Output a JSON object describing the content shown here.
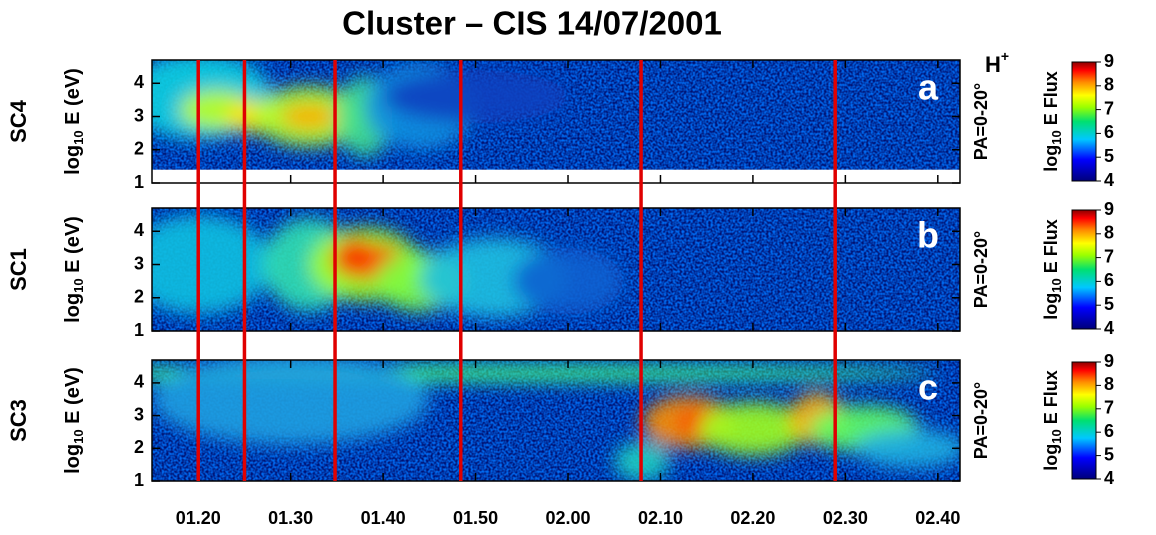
{
  "figure": {
    "title": "Cluster – CIS 14/07/2001",
    "species": {
      "base": "H",
      "sup": "+"
    },
    "xlim": [
      75,
      162.4
    ],
    "xticks": [
      {
        "value": 80,
        "label": "01.20"
      },
      {
        "value": 90,
        "label": "01.30"
      },
      {
        "value": 100,
        "label": "01.40"
      },
      {
        "value": 110,
        "label": "01.50"
      },
      {
        "value": 120,
        "label": "02.00"
      },
      {
        "value": 130,
        "label": "02.10"
      },
      {
        "value": 140,
        "label": "02.20"
      },
      {
        "value": 150,
        "label": "02.30"
      },
      {
        "value": 160,
        "label": "02.40"
      }
    ],
    "markers": [
      80,
      85,
      94.8,
      108.4,
      127.9,
      148.9
    ]
  },
  "chart_data": [
    {
      "type": "spectrogram",
      "panel_label": "SC4",
      "letter": "a",
      "y_label": {
        "base": "log",
        "sub": "10",
        "rest": " E (eV)"
      },
      "ylim": [
        1,
        4.7
      ],
      "yticks": [
        1,
        2,
        3,
        4
      ],
      "pitch_angle": "PA=0-20°",
      "colorbar": {
        "label": {
          "base": "log",
          "sub": "10",
          "rest": " E Flux"
        },
        "lim": [
          4,
          9
        ],
        "ticks": [
          4,
          5,
          6,
          7,
          8,
          9
        ]
      }
    },
    {
      "type": "spectrogram",
      "panel_label": "SC1",
      "letter": "b",
      "y_label": {
        "base": "log",
        "sub": "10",
        "rest": " E (eV)"
      },
      "ylim": [
        1,
        4.7
      ],
      "yticks": [
        1,
        2,
        3,
        4
      ],
      "pitch_angle": "PA=0-20°",
      "colorbar": {
        "label": {
          "base": "log",
          "sub": "10",
          "rest": " E Flux"
        },
        "lim": [
          4,
          9
        ],
        "ticks": [
          4,
          5,
          6,
          7,
          8,
          9
        ]
      }
    },
    {
      "type": "spectrogram",
      "panel_label": "SC3",
      "letter": "c",
      "y_label": {
        "base": "log",
        "sub": "10",
        "rest": " E (eV)"
      },
      "ylim": [
        1,
        4.7
      ],
      "yticks": [
        1,
        2,
        3,
        4
      ],
      "pitch_angle": "PA=0-20°",
      "colorbar": {
        "label": {
          "base": "log",
          "sub": "10",
          "rest": " E Flux"
        },
        "lim": [
          4,
          9
        ],
        "ticks": [
          4,
          5,
          6,
          7,
          8,
          9
        ]
      }
    }
  ]
}
